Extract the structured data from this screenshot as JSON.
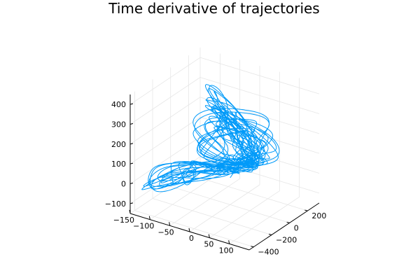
{
  "chart_data": {
    "type": "line3d",
    "title": "Time derivative of trajectories",
    "xlabel": "",
    "ylabel": "",
    "zlabel": "",
    "x_ticks": [
      -150,
      -100,
      -50,
      0,
      50,
      100
    ],
    "y_ticks": [
      -400,
      -200,
      0,
      200
    ],
    "z_ticks": [
      -100,
      0,
      100,
      200,
      300,
      400
    ],
    "xlim": [
      -150,
      150
    ],
    "ylim": [
      -450,
      330
    ],
    "zlim": [
      -150,
      450
    ],
    "grid": true,
    "legend": "none",
    "series_color": "#009af9",
    "series": [
      {
        "waypoints": [
          [
            0,
            -60,
            40
          ],
          [
            -60,
            -120,
            60
          ],
          [
            -110,
            -200,
            20
          ],
          [
            -145,
            -260,
            -85
          ],
          [
            -90,
            -180,
            -10
          ],
          [
            -20,
            -80,
            30
          ],
          [
            20,
            0,
            60
          ],
          [
            40,
            60,
            80
          ],
          [
            30,
            120,
            160
          ],
          [
            -20,
            160,
            250
          ],
          [
            -70,
            130,
            330
          ],
          [
            -60,
            40,
            360
          ],
          [
            0,
            -40,
            320
          ],
          [
            50,
            -60,
            240
          ],
          [
            70,
            -20,
            150
          ],
          [
            40,
            20,
            80
          ],
          [
            0,
            0,
            60
          ],
          [
            -40,
            -40,
            100
          ],
          [
            -60,
            -20,
            200
          ],
          [
            -30,
            40,
            290
          ],
          [
            20,
            90,
            300
          ],
          [
            60,
            110,
            230
          ],
          [
            80,
            60,
            130
          ],
          [
            50,
            0,
            70
          ],
          [
            0,
            -60,
            40
          ]
        ]
      }
    ]
  }
}
